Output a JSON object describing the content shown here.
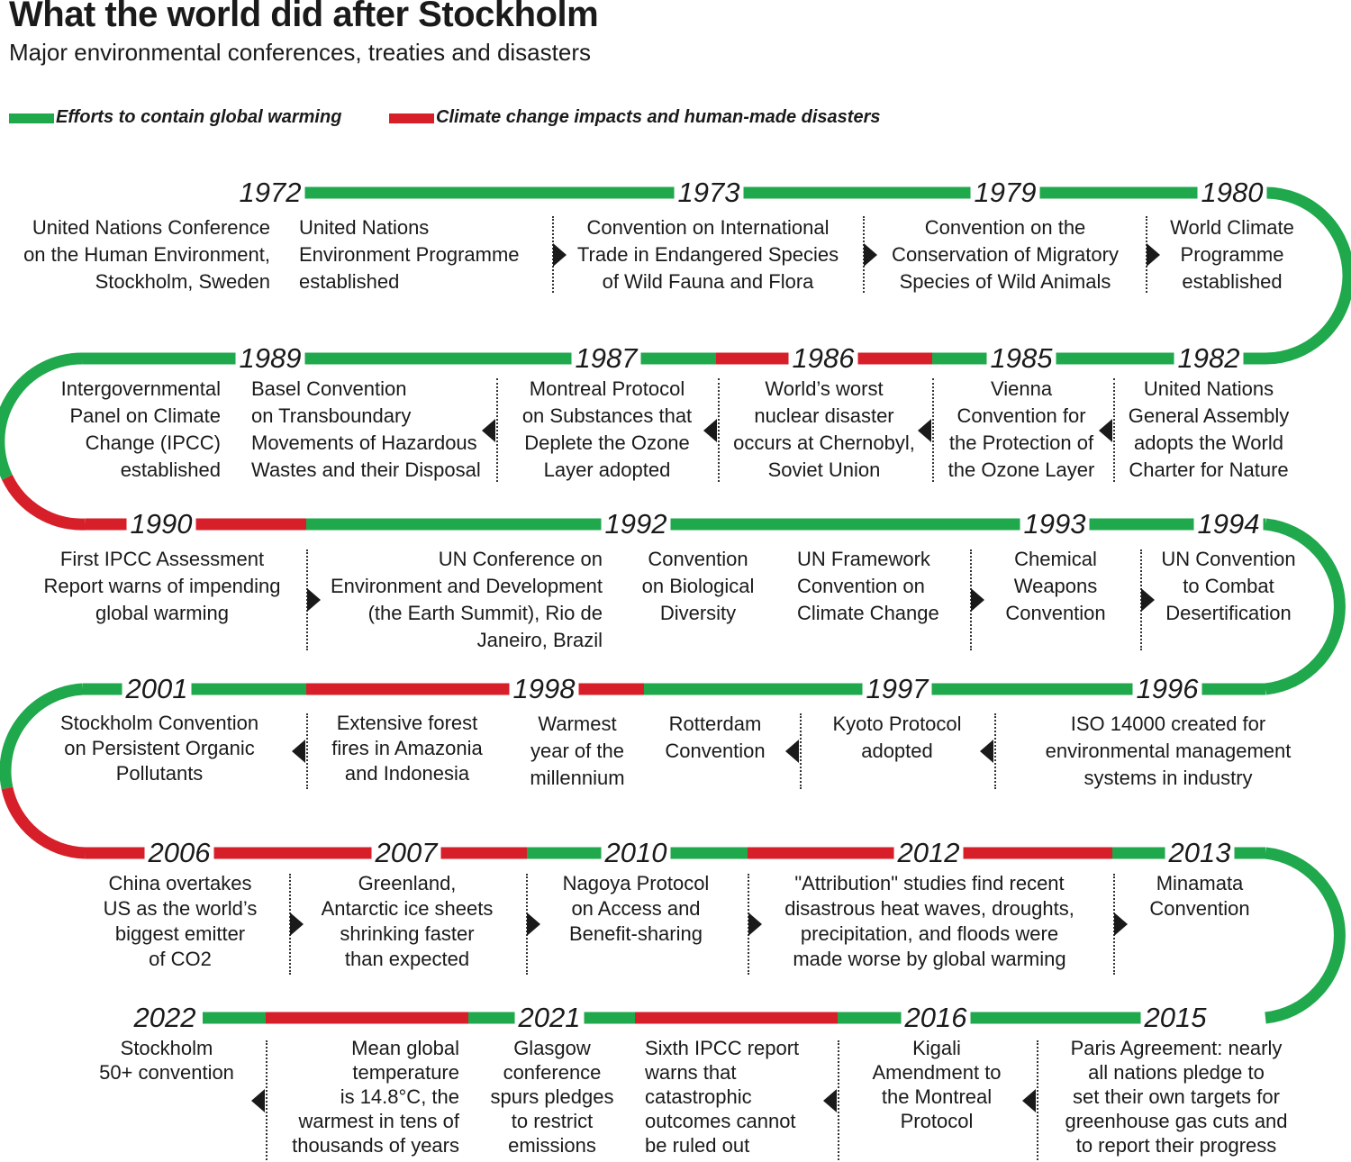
{
  "title": "What the world did after Stockholm",
  "subtitle": "Major environmental conferences, treaties and disasters",
  "colors": {
    "effort": "#1fa84c",
    "impact": "#d71f2a"
  },
  "legend": [
    {
      "label": "Efforts to contain global warming",
      "category": "effort"
    },
    {
      "label": "Climate change impacts and human-made disasters",
      "category": "impact"
    }
  ],
  "years": [
    "1972",
    "1973",
    "1979",
    "1980",
    "1989",
    "1987",
    "1986",
    "1985",
    "1982",
    "1990",
    "1992",
    "1993",
    "1994",
    "2001",
    "1998",
    "1997",
    "1996",
    "2006",
    "2007",
    "2010",
    "2012",
    "2013",
    "2022",
    "2021",
    "2016",
    "2015"
  ],
  "events": [
    {
      "year": "1972",
      "category": "effort",
      "text": "United Nations Conference\non the Human Environment,\nStockholm, Sweden"
    },
    {
      "year": "1972",
      "category": "effort",
      "text": "United Nations\nEnvironment Programme\nestablished"
    },
    {
      "year": "1973",
      "category": "effort",
      "text": "Convention on International\nTrade in Endangered Species\nof Wild Fauna and Flora"
    },
    {
      "year": "1979",
      "category": "effort",
      "text": "Convention on the\nConservation of Migratory\nSpecies of Wild Animals"
    },
    {
      "year": "1980",
      "category": "effort",
      "text": "World Climate\nProgramme\nestablished"
    },
    {
      "year": "1989",
      "category": "effort",
      "text": "Intergovernmental\nPanel on Climate\nChange (IPCC)\nestablished"
    },
    {
      "year": "1989",
      "category": "effort",
      "text": "Basel Convention\non Transboundary\nMovements of Hazardous\nWastes and their Disposal"
    },
    {
      "year": "1987",
      "category": "effort",
      "text": "Montreal Protocol\non Substances that\nDeplete the Ozone\nLayer adopted"
    },
    {
      "year": "1986",
      "category": "impact",
      "text": "World’s worst\nnuclear disaster\noccurs at Chernobyl,\nSoviet Union"
    },
    {
      "year": "1985",
      "category": "effort",
      "text": "Vienna\nConvention for\nthe Protection of\nthe Ozone Layer"
    },
    {
      "year": "1982",
      "category": "effort",
      "text": "United Nations\nGeneral Assembly\nadopts the World\nCharter for Nature"
    },
    {
      "year": "1990",
      "category": "impact",
      "text": "First IPCC Assessment\nReport warns of impending\nglobal warming"
    },
    {
      "year": "1992",
      "category": "effort",
      "text": "UN Conference on\nEnvironment and Development\n(the Earth Summit), Rio de\nJaneiro, Brazil"
    },
    {
      "year": "1992",
      "category": "effort",
      "text": "Convention\non Biological\nDiversity"
    },
    {
      "year": "1992",
      "category": "effort",
      "text": "UN Framework\nConvention on\nClimate Change"
    },
    {
      "year": "1993",
      "category": "effort",
      "text": "Chemical\nWeapons\nConvention"
    },
    {
      "year": "1994",
      "category": "effort",
      "text": "UN Convention\nto Combat\nDesertification"
    },
    {
      "year": "2001",
      "category": "effort",
      "text": "Stockholm Convention\non Persistent Organic\nPollutants"
    },
    {
      "year": "2001",
      "category": "impact",
      "text": "Extensive forest\nfires in Amazonia\nand Indonesia"
    },
    {
      "year": "1998",
      "category": "impact",
      "text": "Warmest\nyear of the\nmillennium"
    },
    {
      "year": "1998",
      "category": "effort",
      "text": "Rotterdam\nConvention"
    },
    {
      "year": "1997",
      "category": "effort",
      "text": "Kyoto Protocol\nadopted"
    },
    {
      "year": "1996",
      "category": "effort",
      "text": "ISO 14000 created for\nenvironmental management\nsystems in industry"
    },
    {
      "year": "2006",
      "category": "impact",
      "text": "China overtakes\nUS as the world’s\nbiggest emitter\nof CO2"
    },
    {
      "year": "2007",
      "category": "impact",
      "text": "Greenland,\nAntarctic ice sheets\nshrinking faster\nthan expected"
    },
    {
      "year": "2010",
      "category": "effort",
      "text": "Nagoya Protocol\non Access and\nBenefit-sharing"
    },
    {
      "year": "2012",
      "category": "impact",
      "text": "\"Attribution\" studies find recent\ndisastrous heat waves, droughts,\nprecipitation, and floods were\nmade worse by global warming"
    },
    {
      "year": "2013",
      "category": "effort",
      "text": "Minamata\nConvention"
    },
    {
      "year": "2022",
      "category": "effort",
      "text": "Stockholm\n50+ convention"
    },
    {
      "year": "2021",
      "category": "impact",
      "text": "Mean global\ntemperature\nis 14.8°C, the\nwarmest in tens of\nthousands of years"
    },
    {
      "year": "2021",
      "category": "effort",
      "text": "Glasgow\nconference\nspurs pledges\nto restrict\nemissions"
    },
    {
      "year": "2021",
      "category": "impact",
      "text": "Sixth IPCC report\nwarns that\ncatastrophic\noutcomes cannot\nbe ruled out"
    },
    {
      "year": "2016",
      "category": "effort",
      "text": "Kigali\nAmendment to\nthe Montreal\nProtocol"
    },
    {
      "year": "2015",
      "category": "effort",
      "text": "Paris Agreement: nearly\nall nations pledge to\nset their own targets for\ngreenhouse gas cuts and\nto report their progress"
    }
  ]
}
